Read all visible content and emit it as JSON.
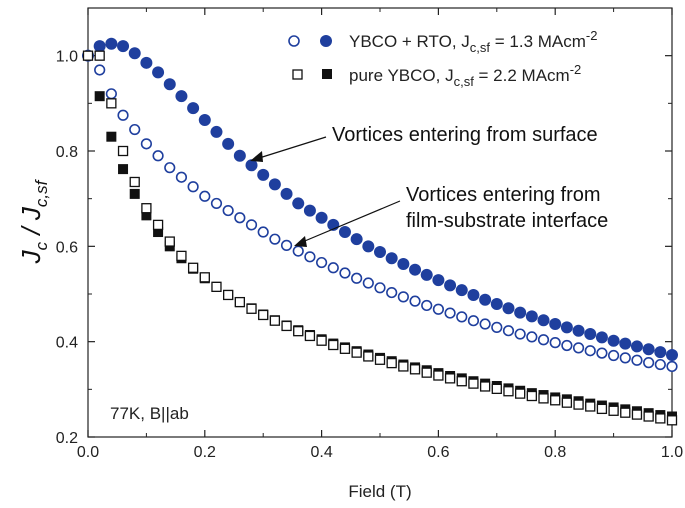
{
  "chart_data": {
    "type": "scatter",
    "xlabel": "Field (T)",
    "ylabel": {
      "main": "J",
      "sub1": "c",
      "sep": " / J",
      "sub2": "c,sf"
    },
    "xlim": [
      0,
      1.0
    ],
    "ylim": [
      0.2,
      1.1
    ],
    "xticks": [
      "0.0",
      "0.2",
      "0.4",
      "0.6",
      "0.8",
      "1.0"
    ],
    "yticks": [
      "0.2",
      "0.4",
      "0.6",
      "0.8",
      "1.0"
    ],
    "grid": false,
    "legend_position": "top-right",
    "legend": [
      {
        "text_a": "YBCO + RTO, J",
        "text_sub": "c,sf",
        "text_b": "  = 1.3 MAcm",
        "text_sup": "-2"
      },
      {
        "text_a": "pure YBCO, J",
        "text_sub": "c,sf",
        "text_b": "  = 2.2 MAcm",
        "text_sup": "-2"
      }
    ],
    "annotations": [
      {
        "lines": [
          "Vortices entering from surface"
        ]
      },
      {
        "lines": [
          "Vortices entering from",
          "film-substrate interface"
        ]
      }
    ],
    "condition": "77K, B||ab",
    "colors": {
      "ybco_rto": "#1f3f9e",
      "pure_ybco": "#111111"
    },
    "series": [
      {
        "name": "YBCO + RTO, Jc,sf = 1.3 MAcm-2 (surface)",
        "marker": "filled-circle",
        "x": [
          0,
          0.02,
          0.04,
          0.06,
          0.08,
          0.1,
          0.12,
          0.14,
          0.16,
          0.18,
          0.2,
          0.22,
          0.24,
          0.26,
          0.28,
          0.3,
          0.32,
          0.34,
          0.36,
          0.38,
          0.4,
          0.42,
          0.44,
          0.46,
          0.48,
          0.5,
          0.52,
          0.54,
          0.56,
          0.58,
          0.6,
          0.62,
          0.64,
          0.66,
          0.68,
          0.7,
          0.72,
          0.74,
          0.76,
          0.78,
          0.8,
          0.82,
          0.84,
          0.86,
          0.88,
          0.9,
          0.92,
          0.94,
          0.96,
          0.98,
          1.0
        ],
        "y": [
          1.0,
          1.02,
          1.025,
          1.02,
          1.005,
          0.985,
          0.965,
          0.94,
          0.915,
          0.89,
          0.865,
          0.84,
          0.815,
          0.79,
          0.77,
          0.75,
          0.73,
          0.71,
          0.69,
          0.675,
          0.66,
          0.645,
          0.63,
          0.615,
          0.6,
          0.588,
          0.575,
          0.563,
          0.551,
          0.54,
          0.529,
          0.518,
          0.508,
          0.498,
          0.488,
          0.479,
          0.47,
          0.461,
          0.453,
          0.445,
          0.437,
          0.43,
          0.423,
          0.416,
          0.409,
          0.402,
          0.396,
          0.39,
          0.384,
          0.378,
          0.372
        ]
      },
      {
        "name": "YBCO + RTO, Jc,sf = 1.3 MAcm-2 (interface)",
        "marker": "open-circle",
        "x": [
          0,
          0.02,
          0.04,
          0.06,
          0.08,
          0.1,
          0.12,
          0.14,
          0.16,
          0.18,
          0.2,
          0.22,
          0.24,
          0.26,
          0.28,
          0.3,
          0.32,
          0.34,
          0.36,
          0.38,
          0.4,
          0.42,
          0.44,
          0.46,
          0.48,
          0.5,
          0.52,
          0.54,
          0.56,
          0.58,
          0.6,
          0.62,
          0.64,
          0.66,
          0.68,
          0.7,
          0.72,
          0.74,
          0.76,
          0.78,
          0.8,
          0.82,
          0.84,
          0.86,
          0.88,
          0.9,
          0.92,
          0.94,
          0.96,
          0.98,
          1.0
        ],
        "y": [
          1.0,
          0.97,
          0.92,
          0.875,
          0.845,
          0.815,
          0.79,
          0.765,
          0.745,
          0.725,
          0.705,
          0.69,
          0.675,
          0.66,
          0.645,
          0.63,
          0.615,
          0.602,
          0.59,
          0.578,
          0.566,
          0.555,
          0.544,
          0.533,
          0.523,
          0.513,
          0.503,
          0.494,
          0.485,
          0.476,
          0.468,
          0.46,
          0.452,
          0.444,
          0.437,
          0.43,
          0.423,
          0.416,
          0.41,
          0.404,
          0.398,
          0.392,
          0.387,
          0.381,
          0.376,
          0.371,
          0.366,
          0.361,
          0.356,
          0.352,
          0.348
        ]
      },
      {
        "name": "pure YBCO, Jc,sf = 2.2 MAcm-2 (surface)",
        "marker": "filled-square",
        "x": [
          0.02,
          0.04,
          0.06,
          0.08,
          0.1,
          0.12,
          0.14,
          0.16,
          0.18,
          0.2,
          0.22,
          0.24,
          0.26,
          0.28,
          0.3,
          0.32,
          0.34,
          0.36,
          0.38,
          0.4,
          0.42,
          0.44,
          0.46,
          0.48,
          0.5,
          0.52,
          0.54,
          0.56,
          0.58,
          0.6,
          0.62,
          0.64,
          0.66,
          0.68,
          0.7,
          0.72,
          0.74,
          0.76,
          0.78,
          0.8,
          0.82,
          0.84,
          0.86,
          0.88,
          0.9,
          0.92,
          0.94,
          0.96,
          0.98,
          1.0
        ],
        "y": [
          0.915,
          0.83,
          0.762,
          0.71,
          0.665,
          0.63,
          0.6,
          0.575,
          0.553,
          0.533,
          0.515,
          0.498,
          0.483,
          0.47,
          0.457,
          0.445,
          0.434,
          0.424,
          0.414,
          0.405,
          0.396,
          0.388,
          0.38,
          0.373,
          0.366,
          0.359,
          0.352,
          0.346,
          0.34,
          0.334,
          0.328,
          0.323,
          0.317,
          0.312,
          0.307,
          0.302,
          0.297,
          0.292,
          0.288,
          0.283,
          0.279,
          0.275,
          0.27,
          0.266,
          0.262,
          0.258,
          0.254,
          0.25,
          0.246,
          0.243
        ]
      },
      {
        "name": "pure YBCO, Jc,sf = 2.2 MAcm-2 (interface)",
        "marker": "open-square",
        "x": [
          0,
          0.02,
          0.04,
          0.06,
          0.08,
          0.1,
          0.12,
          0.14,
          0.16,
          0.18,
          0.2,
          0.22,
          0.24,
          0.26,
          0.28,
          0.3,
          0.32,
          0.34,
          0.36,
          0.38,
          0.4,
          0.42,
          0.44,
          0.46,
          0.48,
          0.5,
          0.52,
          0.54,
          0.56,
          0.58,
          0.6,
          0.62,
          0.64,
          0.66,
          0.68,
          0.7,
          0.72,
          0.74,
          0.76,
          0.78,
          0.8,
          0.82,
          0.84,
          0.86,
          0.88,
          0.9,
          0.92,
          0.94,
          0.96,
          0.98,
          1.0
        ],
        "y": [
          1.0,
          1.0,
          0.9,
          0.8,
          0.735,
          0.68,
          0.645,
          0.61,
          0.58,
          0.555,
          0.535,
          0.515,
          0.498,
          0.483,
          0.469,
          0.456,
          0.444,
          0.433,
          0.422,
          0.412,
          0.402,
          0.393,
          0.385,
          0.377,
          0.369,
          0.362,
          0.355,
          0.348,
          0.342,
          0.335,
          0.329,
          0.323,
          0.317,
          0.312,
          0.306,
          0.301,
          0.296,
          0.291,
          0.286,
          0.281,
          0.277,
          0.272,
          0.268,
          0.264,
          0.259,
          0.255,
          0.251,
          0.247,
          0.243,
          0.239,
          0.235
        ]
      }
    ]
  }
}
